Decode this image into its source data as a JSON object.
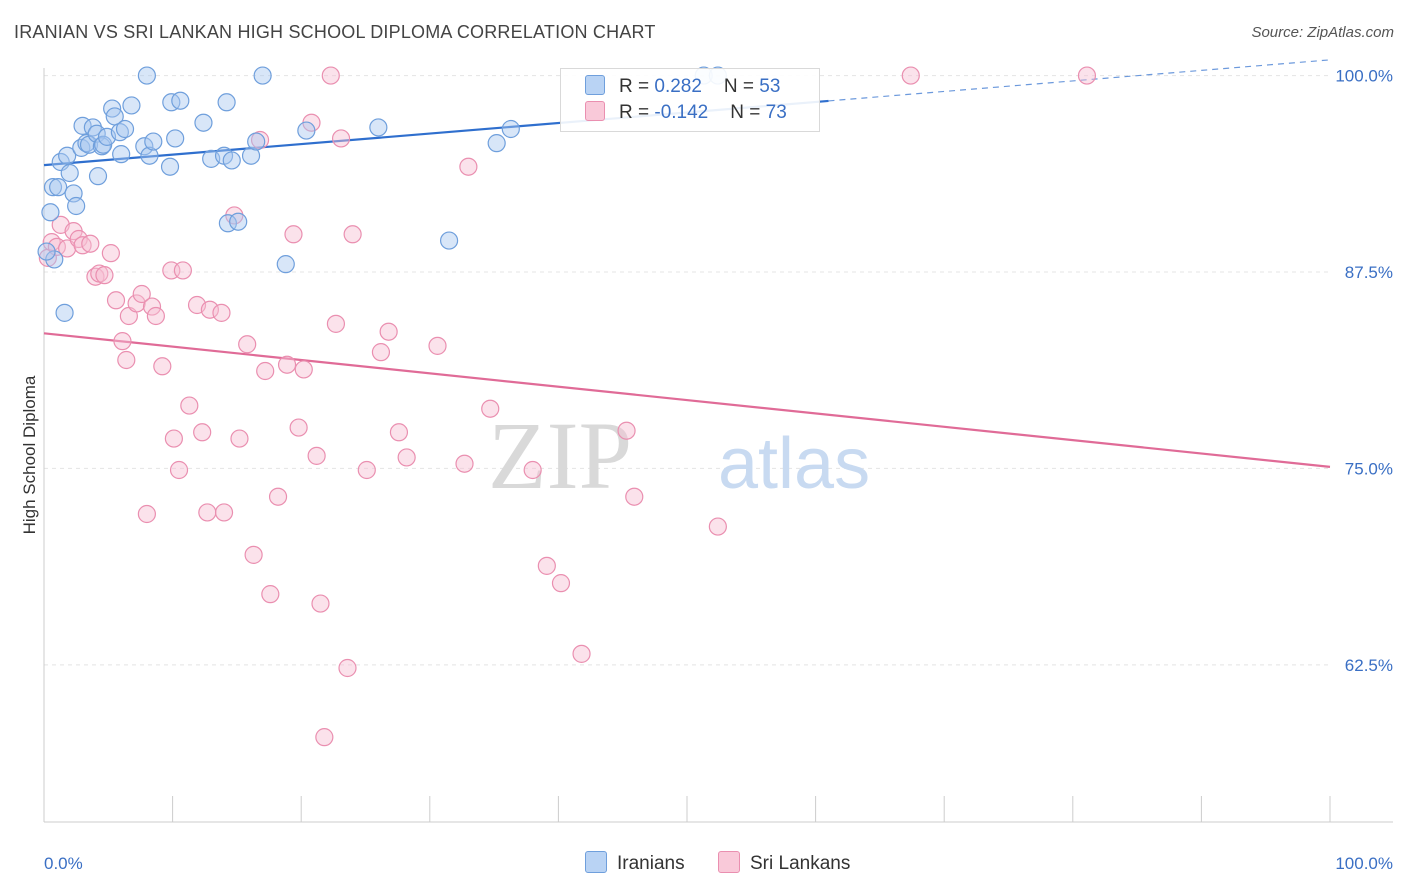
{
  "title": "IRANIAN VS SRI LANKAN HIGH SCHOOL DIPLOMA CORRELATION CHART",
  "source": "Source: ZipAtlas.com",
  "watermark": {
    "zip": "ZIP",
    "atlas": "atlas"
  },
  "legend": {
    "iranians": {
      "r_label": "R = ",
      "r_value": "0.282",
      "n_label": "N = ",
      "n_value": "53"
    },
    "srilankans": {
      "r_label": "R = ",
      "r_value": "-0.142",
      "n_label": "N = ",
      "n_value": "73"
    }
  },
  "bottom_legend": {
    "iranians": "Iranians",
    "srilankans": "Sri Lankans"
  },
  "colors": {
    "blue_fill": "#a9c8f0",
    "blue_stroke": "#6f9fdc",
    "blue_line": "#2f6fce",
    "pink_fill": "#f7bfd2",
    "pink_stroke": "#ea8fb0",
    "pink_line": "#e06b97",
    "tick_label": "#3a6fc4"
  },
  "chart_data": {
    "type": "scatter",
    "title": "IRANIAN VS SRI LANKAN HIGH SCHOOL DIPLOMA CORRELATION CHART",
    "xlabel": "",
    "ylabel": "High School Diploma",
    "xlim": [
      0,
      100
    ],
    "ylim": [
      52.5,
      101.5
    ],
    "x_tick_labels": [
      "0.0%",
      "100.0%"
    ],
    "y_ticks": [
      62.5,
      75.0,
      87.5,
      100.0
    ],
    "y_tick_labels": [
      "62.5%",
      "75.0%",
      "87.5%",
      "100.0%"
    ],
    "series": [
      {
        "name": "Iranians",
        "r": 0.282,
        "n": 53,
        "trend": {
          "x": [
            0,
            100
          ],
          "y": [
            94.3,
            101.0
          ],
          "solid_until": 61
        },
        "points": [
          [
            0.5,
            91.3
          ],
          [
            0.7,
            92.9
          ],
          [
            0.8,
            88.3
          ],
          [
            1.1,
            92.9
          ],
          [
            1.3,
            94.5
          ],
          [
            1.6,
            84.9
          ],
          [
            1.8,
            94.9
          ],
          [
            2.0,
            93.8
          ],
          [
            2.3,
            92.5
          ],
          [
            2.5,
            91.7
          ],
          [
            2.9,
            95.4
          ],
          [
            3.0,
            96.8
          ],
          [
            3.3,
            95.7
          ],
          [
            3.5,
            95.6
          ],
          [
            3.8,
            96.7
          ],
          [
            4.1,
            96.3
          ],
          [
            4.2,
            93.6
          ],
          [
            4.5,
            95.5
          ],
          [
            4.6,
            95.6
          ],
          [
            4.9,
            96.1
          ],
          [
            5.3,
            97.9
          ],
          [
            5.5,
            97.4
          ],
          [
            5.9,
            96.4
          ],
          [
            6.0,
            95.0
          ],
          [
            6.3,
            96.6
          ],
          [
            6.8,
            98.1
          ],
          [
            7.8,
            95.5
          ],
          [
            8.2,
            94.9
          ],
          [
            8.5,
            95.8
          ],
          [
            9.8,
            94.2
          ],
          [
            9.9,
            98.3
          ],
          [
            10.2,
            96.0
          ],
          [
            10.6,
            98.4
          ],
          [
            12.4,
            97.0
          ],
          [
            13.0,
            94.7
          ],
          [
            14.0,
            94.9
          ],
          [
            14.2,
            98.3
          ],
          [
            14.3,
            90.6
          ],
          [
            14.6,
            94.6
          ],
          [
            15.1,
            90.7
          ],
          [
            16.1,
            94.9
          ],
          [
            16.5,
            95.8
          ],
          [
            17.0,
            100.0
          ],
          [
            18.8,
            88.0
          ],
          [
            20.4,
            96.5
          ],
          [
            26.0,
            96.7
          ],
          [
            31.5,
            89.5
          ],
          [
            35.2,
            95.7
          ],
          [
            36.3,
            96.6
          ],
          [
            8.0,
            100.0
          ],
          [
            51.3,
            100.0
          ],
          [
            52.4,
            100.0
          ],
          [
            0.2,
            88.8
          ]
        ]
      },
      {
        "name": "Sri Lankans",
        "r": -0.142,
        "n": 73,
        "trend": {
          "x": [
            0,
            100
          ],
          "y": [
            83.6,
            75.1
          ]
        },
        "points": [
          [
            0.3,
            88.4
          ],
          [
            0.6,
            89.4
          ],
          [
            1.0,
            89.1
          ],
          [
            1.3,
            90.5
          ],
          [
            1.8,
            89.0
          ],
          [
            2.3,
            90.1
          ],
          [
            2.7,
            89.6
          ],
          [
            3.0,
            89.2
          ],
          [
            3.6,
            89.3
          ],
          [
            4.0,
            87.2
          ],
          [
            4.3,
            87.4
          ],
          [
            4.7,
            87.3
          ],
          [
            5.2,
            88.7
          ],
          [
            5.6,
            85.7
          ],
          [
            6.1,
            83.1
          ],
          [
            6.4,
            81.9
          ],
          [
            6.6,
            84.7
          ],
          [
            7.2,
            85.5
          ],
          [
            7.6,
            86.1
          ],
          [
            8.0,
            72.1
          ],
          [
            8.4,
            85.3
          ],
          [
            8.7,
            84.7
          ],
          [
            9.2,
            81.5
          ],
          [
            9.9,
            87.6
          ],
          [
            10.1,
            76.9
          ],
          [
            10.5,
            74.9
          ],
          [
            10.8,
            87.6
          ],
          [
            11.3,
            79.0
          ],
          [
            11.9,
            85.4
          ],
          [
            12.3,
            77.3
          ],
          [
            12.9,
            85.1
          ],
          [
            12.7,
            72.2
          ],
          [
            14.0,
            72.2
          ],
          [
            13.8,
            84.9
          ],
          [
            14.8,
            91.1
          ],
          [
            15.2,
            76.9
          ],
          [
            15.8,
            82.9
          ],
          [
            16.3,
            69.5
          ],
          [
            16.8,
            95.9
          ],
          [
            17.2,
            81.2
          ],
          [
            17.6,
            67.0
          ],
          [
            18.2,
            73.2
          ],
          [
            18.9,
            81.6
          ],
          [
            19.4,
            89.9
          ],
          [
            19.8,
            77.6
          ],
          [
            20.2,
            81.3
          ],
          [
            20.8,
            97.0
          ],
          [
            21.2,
            75.8
          ],
          [
            21.5,
            66.4
          ],
          [
            21.8,
            57.9
          ],
          [
            22.3,
            100.0
          ],
          [
            22.7,
            84.2
          ],
          [
            23.1,
            96.0
          ],
          [
            23.6,
            62.3
          ],
          [
            24.0,
            89.9
          ],
          [
            25.1,
            74.9
          ],
          [
            26.2,
            82.4
          ],
          [
            26.8,
            83.7
          ],
          [
            27.6,
            77.3
          ],
          [
            28.2,
            75.7
          ],
          [
            30.6,
            82.8
          ],
          [
            33.0,
            94.2
          ],
          [
            32.7,
            75.3
          ],
          [
            34.7,
            78.8
          ],
          [
            38.0,
            74.9
          ],
          [
            39.1,
            68.8
          ],
          [
            40.2,
            67.7
          ],
          [
            41.8,
            63.2
          ],
          [
            45.3,
            77.4
          ],
          [
            45.9,
            73.2
          ],
          [
            52.4,
            71.3
          ],
          [
            67.4,
            100.0
          ],
          [
            81.1,
            100.0
          ]
        ]
      }
    ]
  }
}
